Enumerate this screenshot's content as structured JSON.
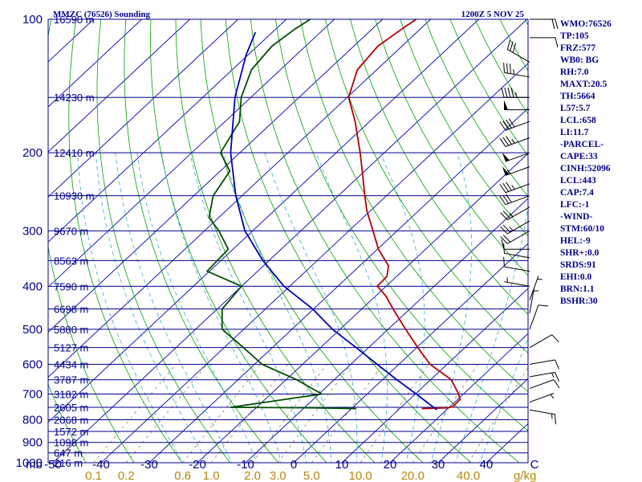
{
  "header": {
    "station": "MMZC (76526) Sounding",
    "time": "1200Z  5 NOV 25"
  },
  "indices": [
    "WMO:76526",
    "TP:105",
    "FRZ:577",
    "WB0: BG",
    "RH:7.0",
    "MAXT:20.5",
    "TH:5664",
    "L57:5.7",
    "LCL:658",
    "LI:11.7",
    "-PARCEL-",
    "CAPE:33",
    "CINH:52096",
    "LCL:443",
    "CAP:7.4",
    "LFC:-1",
    "-WIND-",
    "STM:60/10",
    "HEL:-9",
    "SHR+:0.0",
    "SRDS:91",
    "EHI:0.0",
    "BRN:1.1",
    "BSHR:30"
  ],
  "axis": {
    "pressure_unit": "mb",
    "mixing_unit": "g/kg",
    "pressure_ticks": [
      "100",
      "200",
      "300",
      "400",
      "500",
      "600",
      "700",
      "800",
      "900",
      "1000"
    ],
    "temp_ticks": [
      "-50",
      "-40",
      "-30",
      "-20",
      "-10",
      "0",
      "10",
      "20",
      "30",
      "40",
      "C"
    ],
    "mixing_ticks": [
      "0.1",
      "0.2",
      "0.6",
      "1.0",
      "2.0",
      "3.0",
      "5.0",
      "10.0",
      "20.0",
      "40.0"
    ]
  },
  "chart_data": {
    "type": "line",
    "title": "MMZC (76526) Sounding",
    "subtitle": "1200Z  5 NOV 25",
    "xlabel": "C",
    "ylabel": "mb",
    "y_scale": "log",
    "ylim": [
      1000,
      100
    ],
    "xlim": [
      -50,
      50
    ],
    "height_levels": [
      {
        "p": 100,
        "label": "16590 m"
      },
      {
        "p": 150,
        "label": "14230 m"
      },
      {
        "p": 200,
        "label": "12410 m"
      },
      {
        "p": 250,
        "label": "10930 m"
      },
      {
        "p": 300,
        "label": "9670 m"
      },
      {
        "p": 350,
        "label": "8563 m"
      },
      {
        "p": 400,
        "label": "7590 m"
      },
      {
        "p": 450,
        "label": "6698 m"
      },
      {
        "p": 500,
        "label": "5880 m"
      },
      {
        "p": 550,
        "label": "5127 m"
      },
      {
        "p": 600,
        "label": "4434 m"
      },
      {
        "p": 650,
        "label": "3787 m"
      },
      {
        "p": 700,
        "label": "3182 m"
      },
      {
        "p": 750,
        "label": "2605 m"
      },
      {
        "p": 800,
        "label": "2068 m"
      },
      {
        "p": 850,
        "label": "1572 m"
      },
      {
        "p": 900,
        "label": "1098 m"
      },
      {
        "p": 950,
        "label": "647 m"
      },
      {
        "p": 1000,
        "label": "216 m"
      }
    ],
    "series": [
      {
        "name": "temperature",
        "color": "#b30000",
        "points": [
          [
            755,
            14.6
          ],
          [
            752,
            19.6
          ],
          [
            748,
            20.6
          ],
          [
            720,
            20.5
          ],
          [
            700,
            19.0
          ],
          [
            650,
            14.3
          ],
          [
            600,
            6.5
          ],
          [
            550,
            0.2
          ],
          [
            500,
            -6.4
          ],
          [
            450,
            -13.5
          ],
          [
            420,
            -18.0
          ],
          [
            400,
            -21.8
          ],
          [
            380,
            -22.0
          ],
          [
            360,
            -24.0
          ],
          [
            330,
            -29.8
          ],
          [
            300,
            -35.0
          ],
          [
            270,
            -40.8
          ],
          [
            250,
            -44.5
          ],
          [
            220,
            -50.5
          ],
          [
            200,
            -55.0
          ],
          [
            170,
            -63.0
          ],
          [
            150,
            -69.7
          ],
          [
            130,
            -74.0
          ],
          [
            115,
            -75.0
          ],
          [
            105,
            -73.8
          ],
          [
            100,
            -73.0
          ]
        ]
      },
      {
        "name": "dewpoint",
        "color": "#004d00",
        "points": [
          [
            755,
            1.0
          ],
          [
            752,
            -8.0
          ],
          [
            750,
            -25.4
          ],
          [
            700,
            -9.4
          ],
          [
            650,
            -17.8
          ],
          [
            600,
            -28.4
          ],
          [
            550,
            -36.0
          ],
          [
            500,
            -44.5
          ],
          [
            450,
            -49.0
          ],
          [
            400,
            -50.0
          ],
          [
            370,
            -60.5
          ],
          [
            330,
            -61.0
          ],
          [
            300,
            -67.0
          ],
          [
            280,
            -72.0
          ],
          [
            250,
            -76.0
          ],
          [
            220,
            -78.0
          ],
          [
            200,
            -84.0
          ],
          [
            170,
            -87.0
          ],
          [
            150,
            -92.0
          ],
          [
            130,
            -96.0
          ],
          [
            115,
            -97.0
          ],
          [
            105,
            -96.0
          ],
          [
            100,
            -95.0
          ]
        ]
      },
      {
        "name": "parcel",
        "color": "#0000b4",
        "points": [
          [
            760,
            18.0
          ],
          [
            700,
            10.2
          ],
          [
            650,
            3.0
          ],
          [
            600,
            -4.5
          ],
          [
            550,
            -12.6
          ],
          [
            500,
            -21.6
          ],
          [
            450,
            -30.2
          ],
          [
            400,
            -41.2
          ],
          [
            350,
            -51.3
          ],
          [
            300,
            -61.6
          ],
          [
            250,
            -71.3
          ],
          [
            200,
            -81.9
          ],
          [
            150,
            -93.3
          ],
          [
            120,
            -100.5
          ],
          [
            107,
            -103.5
          ]
        ]
      }
    ],
    "wind_barbs": [
      {
        "p": 100,
        "dir": 90,
        "kt": 20
      },
      {
        "p": 110,
        "dir": 90,
        "kt": 10
      },
      {
        "p": 125,
        "dir": 300,
        "kt": 30
      },
      {
        "p": 135,
        "dir": 280,
        "kt": 35
      },
      {
        "p": 150,
        "dir": 270,
        "kt": 45
      },
      {
        "p": 160,
        "dir": 270,
        "kt": 50
      },
      {
        "p": 170,
        "dir": 250,
        "kt": 40
      },
      {
        "p": 185,
        "dir": 250,
        "kt": 35
      },
      {
        "p": 200,
        "dir": 250,
        "kt": 50
      },
      {
        "p": 215,
        "dir": 250,
        "kt": 55
      },
      {
        "p": 235,
        "dir": 250,
        "kt": 35
      },
      {
        "p": 250,
        "dir": 250,
        "kt": 30
      },
      {
        "p": 265,
        "dir": 240,
        "kt": 25
      },
      {
        "p": 285,
        "dir": 240,
        "kt": 25
      },
      {
        "p": 300,
        "dir": 240,
        "kt": 20
      },
      {
        "p": 330,
        "dir": 270,
        "kt": 10
      },
      {
        "p": 345,
        "dir": 280,
        "kt": 10
      },
      {
        "p": 370,
        "dir": 280,
        "kt": 10
      },
      {
        "p": 400,
        "dir": 280,
        "kt": 5
      },
      {
        "p": 430,
        "dir": 20,
        "kt": 5
      },
      {
        "p": 460,
        "dir": 10,
        "kt": 5
      },
      {
        "p": 500,
        "dir": 20,
        "kt": 10
      },
      {
        "p": 550,
        "dir": 60,
        "kt": 10
      },
      {
        "p": 600,
        "dir": 80,
        "kt": 10
      },
      {
        "p": 640,
        "dir": 80,
        "kt": 15
      },
      {
        "p": 680,
        "dir": 70,
        "kt": 10
      },
      {
        "p": 730,
        "dir": 70,
        "kt": 5
      },
      {
        "p": 760,
        "dir": 100,
        "kt": 15
      }
    ]
  },
  "colors": {
    "isobar": "#00008b",
    "isotherm": "#0000b4",
    "dry_adiabat": "#00a000",
    "moist_adiabat": "#33aacc",
    "mixing_ratio": "#8b7d4a",
    "temperature": "#b30000",
    "dewpoint": "#004d00",
    "parcel": "#0000b4",
    "mixing_text": "#b8860b",
    "text": "#00008b"
  }
}
